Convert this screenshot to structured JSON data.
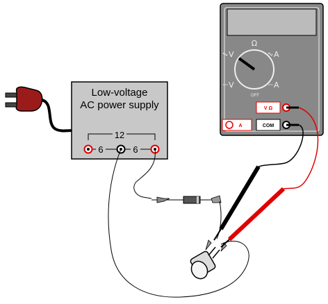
{
  "power_supply": {
    "title_line1": "Low-voltage",
    "title_line2": "AC power supply",
    "tap_center": "12",
    "tap_left": "6",
    "tap_right": "6"
  },
  "multimeter": {
    "dial_top": "Ω",
    "dial_off": "OFF",
    "jack_vohm": "V Ω",
    "jack_com": "COM",
    "jack_a": "A",
    "dial_left_upper": "V",
    "dial_left_lower": "V",
    "dial_right_upper": "A",
    "dial_right_lower": "A"
  },
  "colors": {
    "panel": "#c8c8c8",
    "meter_body": "#888888",
    "display": "#bbbbbb",
    "probe_red": "#e00000",
    "probe_black": "#000000",
    "plug": "#9b1b1b"
  },
  "icons": [
    "ac-plug-icon",
    "binding-post-icon",
    "rotary-selector-icon",
    "test-probe-icon",
    "alligator-clip-icon",
    "diode-icon",
    "motor-icon"
  ]
}
